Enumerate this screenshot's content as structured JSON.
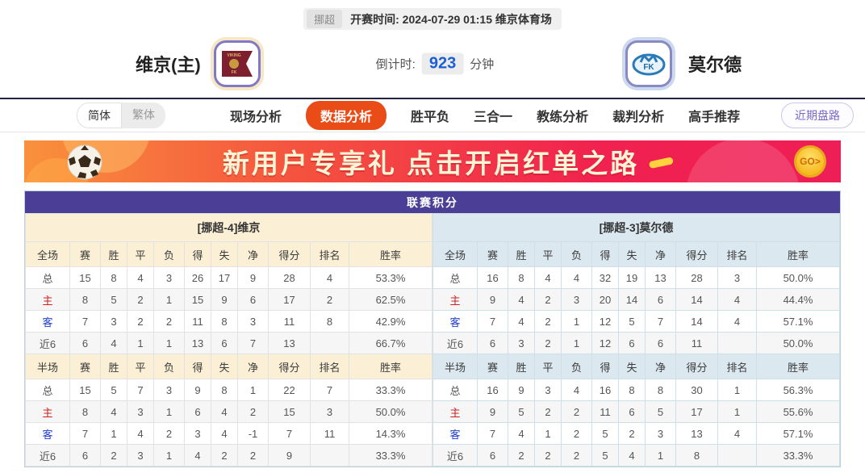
{
  "match_bar": {
    "league": "挪超",
    "info": "开赛时间: 2024-07-29 01:15 维京体育场"
  },
  "header": {
    "home_team": "维京(主)",
    "away_team": "莫尔德",
    "home_logo_text": "VIKING FK",
    "away_logo_text": "MFK",
    "countdown_label": "倒计时:",
    "countdown_value": "923",
    "countdown_unit": "分钟"
  },
  "nav": {
    "lang_simplified": "简体",
    "lang_traditional": "繁体",
    "items": [
      "现场分析",
      "数据分析",
      "胜平负",
      "三合一",
      "教练分析",
      "裁判分析",
      "高手推荐"
    ],
    "active_item": "数据分析",
    "recent_button": "近期盘路"
  },
  "banner": {
    "text": "新用户专享礼  点击开启红单之路",
    "go_label": "GO>"
  },
  "standings": {
    "title": "联赛积分",
    "columns_full": [
      "全场",
      "赛",
      "胜",
      "平",
      "负",
      "得",
      "失",
      "净",
      "得分",
      "排名",
      "胜率"
    ],
    "columns_half": [
      "半场",
      "赛",
      "胜",
      "平",
      "负",
      "得",
      "失",
      "净",
      "得分",
      "排名",
      "胜率"
    ],
    "left": {
      "team_header": "[挪超-4]维京",
      "fulltime": [
        [
          "总",
          "15",
          "8",
          "4",
          "3",
          "26",
          "17",
          "9",
          "28",
          "4",
          "53.3%"
        ],
        [
          "主",
          "8",
          "5",
          "2",
          "1",
          "15",
          "9",
          "6",
          "17",
          "2",
          "62.5%"
        ],
        [
          "客",
          "7",
          "3",
          "2",
          "2",
          "11",
          "8",
          "3",
          "11",
          "8",
          "42.9%"
        ],
        [
          "近6",
          "6",
          "4",
          "1",
          "1",
          "13",
          "6",
          "7",
          "13",
          "",
          "66.7%"
        ]
      ],
      "halftime": [
        [
          "总",
          "15",
          "5",
          "7",
          "3",
          "9",
          "8",
          "1",
          "22",
          "7",
          "33.3%"
        ],
        [
          "主",
          "8",
          "4",
          "3",
          "1",
          "6",
          "4",
          "2",
          "15",
          "3",
          "50.0%"
        ],
        [
          "客",
          "7",
          "1",
          "4",
          "2",
          "3",
          "4",
          "-1",
          "7",
          "11",
          "14.3%"
        ],
        [
          "近6",
          "6",
          "2",
          "3",
          "1",
          "4",
          "2",
          "2",
          "9",
          "",
          "33.3%"
        ]
      ]
    },
    "right": {
      "team_header": "[挪超-3]莫尔德",
      "fulltime": [
        [
          "总",
          "16",
          "8",
          "4",
          "4",
          "32",
          "19",
          "13",
          "28",
          "3",
          "50.0%"
        ],
        [
          "主",
          "9",
          "4",
          "2",
          "3",
          "20",
          "14",
          "6",
          "14",
          "4",
          "44.4%"
        ],
        [
          "客",
          "7",
          "4",
          "2",
          "1",
          "12",
          "5",
          "7",
          "14",
          "4",
          "57.1%"
        ],
        [
          "近6",
          "6",
          "3",
          "2",
          "1",
          "12",
          "6",
          "6",
          "11",
          "",
          "50.0%"
        ]
      ],
      "halftime": [
        [
          "总",
          "16",
          "9",
          "3",
          "4",
          "16",
          "8",
          "8",
          "30",
          "1",
          "56.3%"
        ],
        [
          "主",
          "9",
          "5",
          "2",
          "2",
          "11",
          "6",
          "5",
          "17",
          "1",
          "55.6%"
        ],
        [
          "客",
          "7",
          "4",
          "1",
          "2",
          "5",
          "2",
          "3",
          "13",
          "4",
          "57.1%"
        ],
        [
          "近6",
          "6",
          "2",
          "2",
          "2",
          "5",
          "4",
          "1",
          "8",
          "",
          "33.3%"
        ]
      ]
    }
  },
  "colors": {
    "accent_orange": "#ea4c17",
    "table_header_purple": "#4a3e96",
    "home_row_red": "#cc2020",
    "away_row_blue": "#2040cc",
    "left_panel_cream": "#fbf0d6",
    "right_panel_blue": "#dce8f0",
    "countdown_blue": "#1a5fd6",
    "banner_red": "#f1224f"
  }
}
